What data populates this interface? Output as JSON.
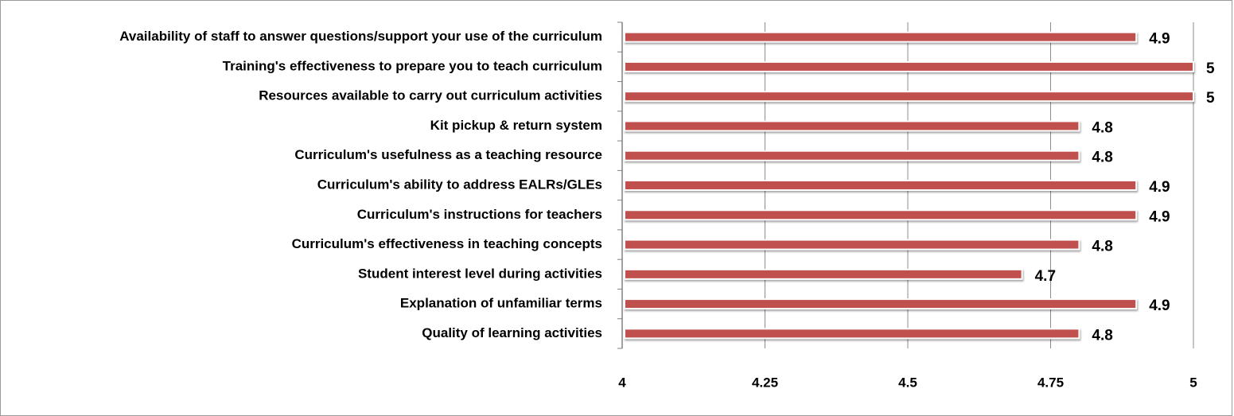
{
  "chart_data": {
    "type": "barh",
    "categories": [
      "Availability of staff to answer questions/support your use of the curriculum",
      "Training's effectiveness to prepare you to teach curriculum",
      "Resources available to carry out curriculum activities",
      "Kit pickup & return system",
      "Curriculum's usefulness as a teaching resource",
      "Curriculum's ability to address EALRs/GLEs",
      "Curriculum's instructions for teachers",
      "Curriculum's effectiveness in teaching concepts",
      "Student interest level during activities",
      "Explanation of unfamiliar terms",
      "Quality of learning activities"
    ],
    "values": [
      4.9,
      5,
      5,
      4.8,
      4.8,
      4.9,
      4.9,
      4.8,
      4.7,
      4.9,
      4.8
    ],
    "color": "#c0504d",
    "xlim": [
      4,
      5
    ],
    "xticks": [
      4,
      4.25,
      4.5,
      4.75,
      5
    ],
    "grid": true
  }
}
